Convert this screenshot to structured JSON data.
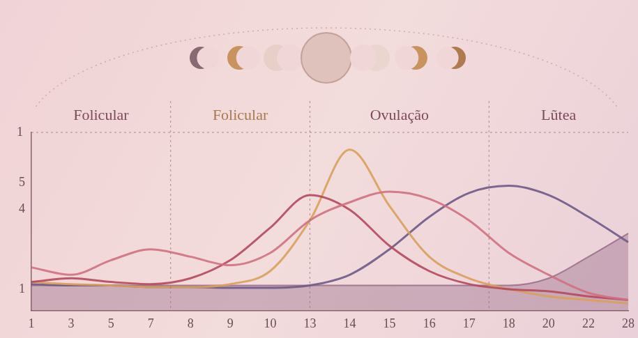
{
  "chart_data": {
    "type": "line",
    "categories": [
      "1",
      "3",
      "5",
      "7",
      "8",
      "9",
      "10",
      "13",
      "14",
      "15",
      "16",
      "17",
      "18",
      "20",
      "22",
      "28"
    ],
    "series": [
      {
        "color": "#d0707f",
        "values": [
          1.82,
          1.54,
          2.09,
          2.5,
          2.22,
          1.9,
          2.36,
          3.59,
          4.27,
          4.67,
          4.4,
          3.59,
          2.36,
          1.54,
          0.86,
          0.59
        ]
      },
      {
        "color": "#b5485e",
        "values": [
          1.27,
          1.41,
          1.27,
          1.19,
          1.41,
          2.09,
          3.31,
          4.54,
          3.99,
          2.63,
          1.68,
          1.19,
          1.0,
          0.92,
          0.73,
          0.59
        ]
      },
      {
        "color": "#d9a05a",
        "values": [
          1.27,
          1.19,
          1.14,
          1.08,
          1.08,
          1.19,
          1.68,
          3.59,
          6.25,
          4.13,
          2.22,
          1.41,
          1.0,
          0.73,
          0.59,
          0.46
        ]
      },
      {
        "color": "#6e5a8a",
        "values": [
          1.19,
          1.14,
          1.14,
          1.08,
          1.08,
          1.05,
          1.05,
          1.14,
          1.54,
          2.5,
          3.72,
          4.62,
          4.89,
          4.54,
          3.72,
          2.77
        ]
      },
      {
        "color": "#8a5a7a",
        "type": "area",
        "values": [
          1.14,
          1.14,
          1.14,
          1.14,
          1.14,
          1.14,
          1.14,
          1.14,
          1.14,
          1.14,
          1.14,
          1.14,
          1.14,
          1.41,
          2.22,
          3.1
        ]
      }
    ],
    "ylim": [
      0.2,
      6.9
    ],
    "yticks": [
      1,
      4,
      5
    ],
    "annotations": [
      {
        "text": "1"
      }
    ],
    "phases": [
      {
        "label": "Folicular",
        "color": "#7d4a5c"
      },
      {
        "label": "Folicular",
        "color": "#a77a52"
      },
      {
        "label": "Ovulação",
        "color": "#7d4a5c"
      },
      {
        "label": "Lũtea",
        "color": "#7d4a5c"
      }
    ],
    "grid": false
  }
}
